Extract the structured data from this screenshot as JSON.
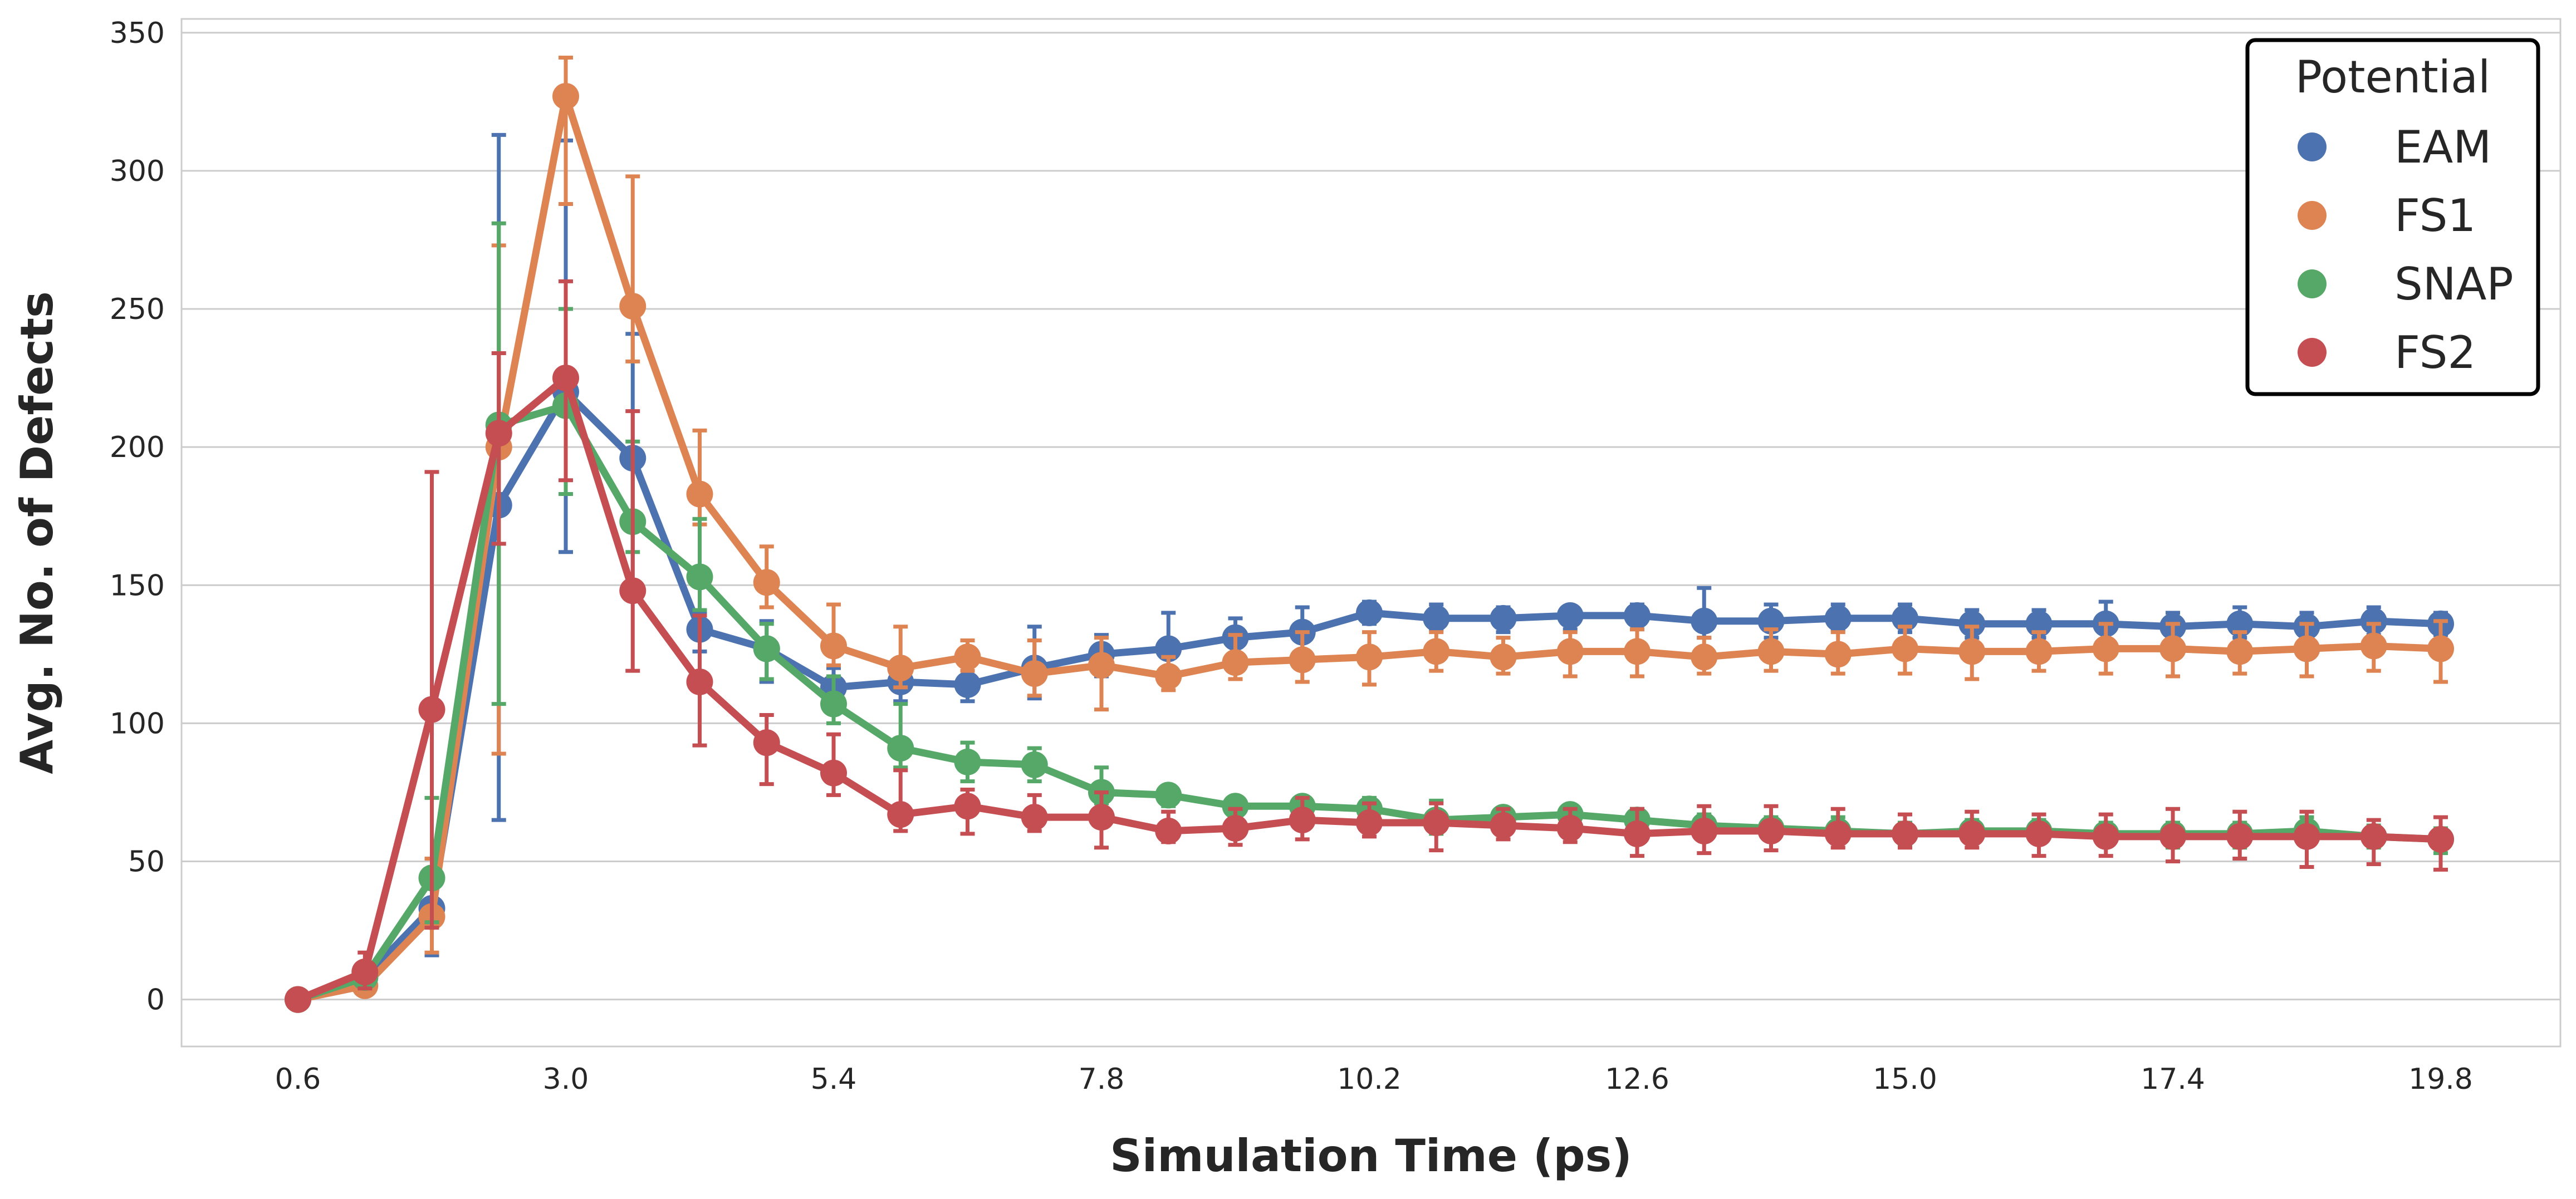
{
  "chart_data": {
    "type": "line",
    "xlabel": "Simulation Time (ps)",
    "ylabel": "Avg. No. of Defects",
    "ylim": [
      -17,
      355
    ],
    "yticks": [
      0,
      50,
      100,
      150,
      200,
      250,
      300,
      350
    ],
    "xtick_labels": [
      "0.6",
      "3.0",
      "5.4",
      "7.8",
      "10.2",
      "12.6",
      "15.0",
      "17.4",
      "19.8"
    ],
    "xtick_positions": [
      0,
      4,
      8,
      12,
      16,
      20,
      24,
      28,
      32
    ],
    "x": [
      "0.6",
      "1.2",
      "1.8",
      "2.4",
      "3.0",
      "3.6",
      "4.2",
      "4.8",
      "5.4",
      "6.0",
      "6.6",
      "7.2",
      "7.8",
      "8.4",
      "9.0",
      "9.6",
      "10.2",
      "10.8",
      "11.4",
      "12.0",
      "12.6",
      "13.2",
      "13.8",
      "14.4",
      "15.0",
      "15.6",
      "16.2",
      "16.8",
      "17.4",
      "18.0",
      "18.6",
      "19.2",
      "19.8"
    ],
    "grid": true,
    "legend": {
      "title": "Potential",
      "placement": "top-right"
    },
    "series": [
      {
        "name": "EAM",
        "color": "#4c72b0",
        "values": [
          0,
          8,
          33,
          179,
          220,
          196,
          134,
          127,
          113,
          115,
          114,
          120,
          125,
          127,
          131,
          133,
          140,
          138,
          138,
          139,
          139,
          137,
          137,
          138,
          138,
          136,
          136,
          136,
          135,
          136,
          135,
          137,
          136
        ],
        "err_low": [
          0,
          5,
          16,
          65,
          162,
          148,
          126,
          115,
          107,
          108,
          108,
          109,
          117,
          118,
          125,
          126,
          136,
          134,
          133,
          134,
          134,
          131,
          131,
          134,
          133,
          131,
          131,
          130,
          130,
          131,
          130,
          132,
          132
        ],
        "err_high": [
          0,
          11,
          107,
          313,
          311,
          241,
          140,
          137,
          120,
          123,
          122,
          135,
          132,
          140,
          138,
          142,
          144,
          143,
          142,
          142,
          143,
          149,
          143,
          143,
          143,
          141,
          141,
          144,
          140,
          142,
          140,
          142,
          140
        ]
      },
      {
        "name": "FS1",
        "color": "#dd8452",
        "values": [
          0,
          5,
          30,
          200,
          327,
          251,
          183,
          151,
          128,
          120,
          124,
          118,
          121,
          117,
          122,
          123,
          124,
          126,
          124,
          126,
          126,
          124,
          126,
          125,
          127,
          126,
          126,
          127,
          127,
          126,
          127,
          128,
          127
        ],
        "err_low": [
          0,
          3,
          17,
          89,
          288,
          231,
          172,
          142,
          121,
          113,
          119,
          110,
          105,
          112,
          116,
          115,
          114,
          119,
          118,
          117,
          117,
          118,
          119,
          118,
          118,
          116,
          119,
          118,
          117,
          118,
          117,
          119,
          115
        ],
        "err_high": [
          0,
          8,
          51,
          273,
          341,
          298,
          206,
          164,
          143,
          135,
          130,
          130,
          131,
          124,
          132,
          133,
          133,
          133,
          131,
          133,
          134,
          131,
          134,
          133,
          135,
          135,
          133,
          136,
          136,
          133,
          136,
          136,
          137
        ]
      },
      {
        "name": "SNAP",
        "color": "#55a868",
        "values": [
          0,
          8,
          44,
          208,
          215,
          173,
          153,
          127,
          107,
          91,
          86,
          85,
          75,
          74,
          70,
          70,
          69,
          65,
          66,
          67,
          65,
          63,
          62,
          61,
          60,
          61,
          61,
          60,
          60,
          60,
          61,
          59,
          58
        ],
        "err_low": [
          0,
          6,
          28,
          107,
          183,
          162,
          141,
          116,
          100,
          84,
          79,
          79,
          71,
          70,
          67,
          67,
          65,
          60,
          63,
          64,
          62,
          59,
          58,
          58,
          56,
          57,
          57,
          56,
          55,
          55,
          56,
          55,
          53
        ],
        "err_high": [
          0,
          11,
          73,
          281,
          250,
          202,
          174,
          136,
          117,
          107,
          93,
          91,
          84,
          77,
          73,
          73,
          73,
          72,
          69,
          70,
          69,
          67,
          66,
          66,
          64,
          65,
          65,
          64,
          64,
          64,
          66,
          63,
          62
        ]
      },
      {
        "name": "FS2",
        "color": "#c44e52",
        "values": [
          0,
          10,
          105,
          205,
          225,
          148,
          115,
          93,
          82,
          67,
          70,
          66,
          66,
          61,
          62,
          65,
          64,
          64,
          63,
          62,
          60,
          61,
          61,
          60,
          60,
          60,
          60,
          59,
          59,
          59,
          59,
          59,
          58
        ],
        "err_low": [
          0,
          4,
          26,
          165,
          188,
          119,
          92,
          78,
          74,
          61,
          60,
          61,
          55,
          57,
          56,
          58,
          59,
          54,
          58,
          57,
          52,
          53,
          54,
          55,
          55,
          55,
          52,
          52,
          50,
          51,
          48,
          49,
          47
        ],
        "err_high": [
          0,
          17,
          191,
          234,
          260,
          213,
          139,
          103,
          96,
          83,
          76,
          74,
          75,
          68,
          69,
          73,
          71,
          71,
          69,
          69,
          69,
          70,
          70,
          69,
          67,
          68,
          67,
          67,
          69,
          68,
          68,
          65,
          66
        ]
      }
    ]
  }
}
